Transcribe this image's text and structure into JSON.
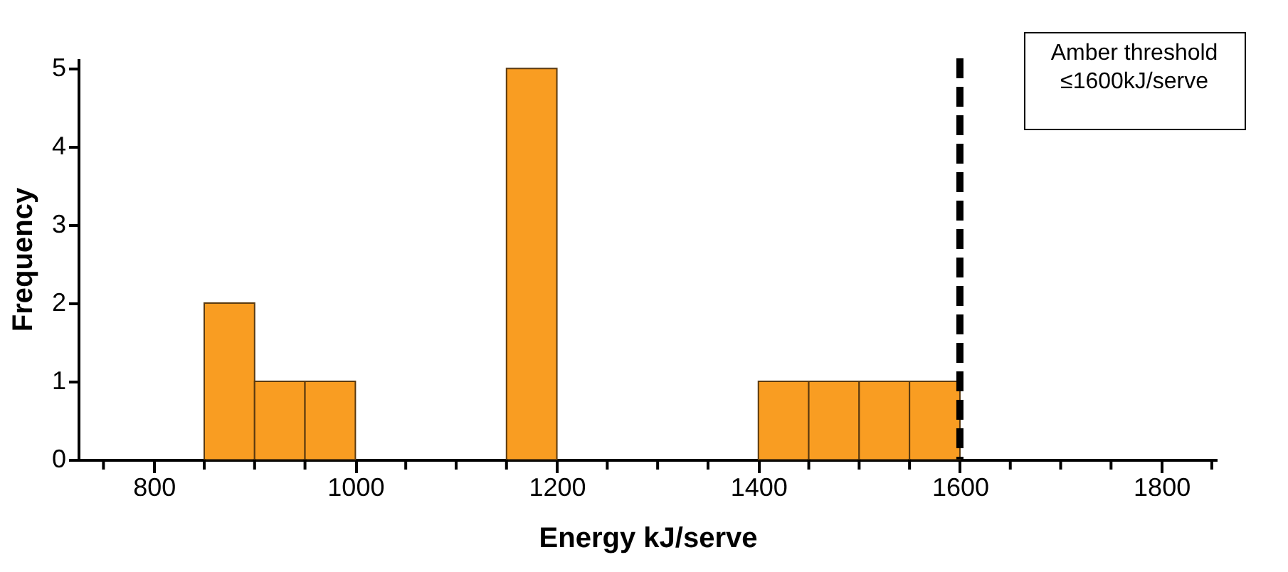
{
  "chart_data": {
    "type": "histogram",
    "xlabel": "Energy kJ/serve",
    "ylabel": "Frequency",
    "bins": [
      850,
      900,
      950,
      1000,
      1050,
      1100,
      1150,
      1200,
      1250,
      1300,
      1350,
      1400,
      1450,
      1500,
      1550,
      1600
    ],
    "values": [
      2,
      1,
      1,
      0,
      0,
      0,
      5,
      0,
      0,
      0,
      0,
      1,
      1,
      1,
      1
    ],
    "color": "#f99d22",
    "xlim": [
      725,
      1855
    ],
    "xticks": [
      {
        "value": 750,
        "label": null
      },
      800,
      {
        "value": 850,
        "label": null
      },
      {
        "value": 900,
        "label": null
      },
      {
        "value": 950,
        "label": null
      },
      1000,
      {
        "value": 1050,
        "label": null
      },
      {
        "value": 1100,
        "label": null
      },
      {
        "value": 1150,
        "label": null
      },
      1200,
      {
        "value": 1250,
        "label": null
      },
      {
        "value": 1300,
        "label": null
      },
      {
        "value": 1350,
        "label": null
      },
      1400,
      {
        "value": 1450,
        "label": null
      },
      {
        "value": 1500,
        "label": null
      },
      {
        "value": 1550,
        "label": null
      },
      1600,
      {
        "value": 1650,
        "label": null
      },
      {
        "value": 1700,
        "label": null
      },
      {
        "value": 1750,
        "label": null
      },
      1800,
      {
        "value": 1850,
        "label": null
      }
    ],
    "ylim": [
      0,
      5.13
    ],
    "yticks": [
      0,
      1,
      2,
      3,
      4,
      5
    ],
    "ref_lines": [
      {
        "axis": "x",
        "value": 1600,
        "label": "Amber threshold\n≤1600kJ/serve",
        "color": "#000000",
        "line_style": "dashed"
      }
    ],
    "grid": false
  }
}
